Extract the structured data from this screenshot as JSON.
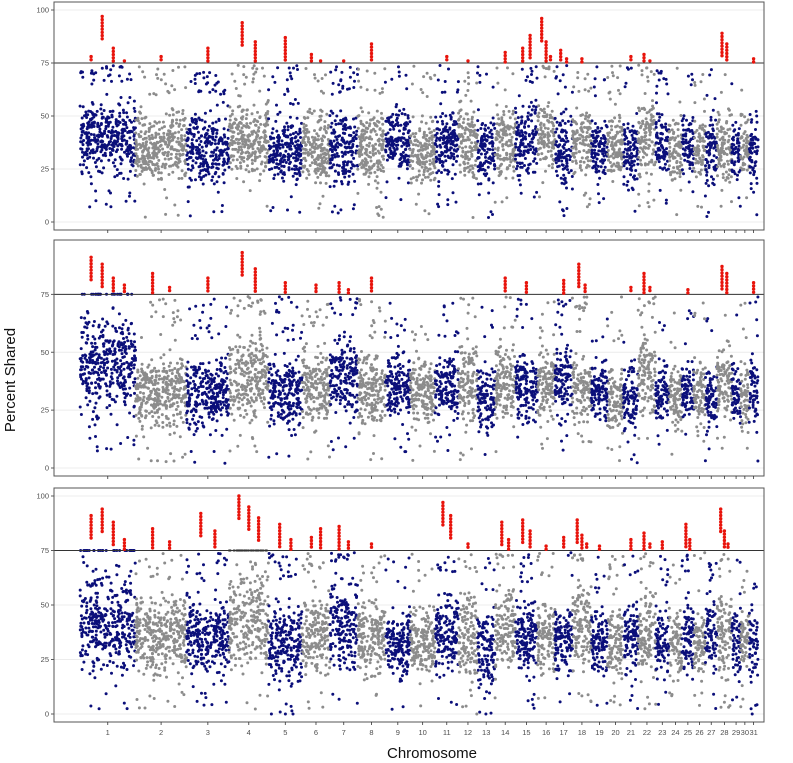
{
  "figure": {
    "xlabel": "Chromosome",
    "ylabel": "Percent Shared"
  },
  "colors": {
    "chrom_odd": "#0b0f7a",
    "chrom_even": "#8c8c8c",
    "highlight": "#e8140c",
    "threshold_line": "#333333",
    "panel_border": "#555555",
    "grid": "#ececec"
  },
  "chart_data": [
    {
      "type": "scatter",
      "title": "",
      "ylim": [
        0,
        100
      ],
      "yticks": [
        0,
        25,
        50,
        75,
        100
      ],
      "threshold": 75,
      "grid": true,
      "chromosomes": [
        "1",
        "2",
        "3",
        "4",
        "5",
        "6",
        "7",
        "8",
        "9",
        "10",
        "11",
        "12",
        "13",
        "14",
        "15",
        "16",
        "17",
        "18",
        "19",
        "20",
        "21",
        "22",
        "23",
        "24",
        "25",
        "26",
        "27",
        "28",
        "29",
        "30",
        "31"
      ],
      "typical_range": [
        [
          15,
          65
        ],
        [
          10,
          60
        ],
        [
          10,
          60
        ],
        [
          15,
          65
        ],
        [
          10,
          55
        ],
        [
          10,
          60
        ],
        [
          10,
          60
        ],
        [
          10,
          60
        ],
        [
          15,
          60
        ],
        [
          10,
          55
        ],
        [
          15,
          60
        ],
        [
          10,
          65
        ],
        [
          10,
          55
        ],
        [
          15,
          60
        ],
        [
          15,
          65
        ],
        [
          15,
          65
        ],
        [
          10,
          60
        ],
        [
          15,
          60
        ],
        [
          15,
          55
        ],
        [
          15,
          55
        ],
        [
          10,
          55
        ],
        [
          15,
          65
        ],
        [
          15,
          60
        ],
        [
          10,
          55
        ],
        [
          15,
          60
        ],
        [
          15,
          55
        ],
        [
          10,
          55
        ],
        [
          10,
          60
        ],
        [
          15,
          55
        ],
        [
          15,
          55
        ],
        [
          10,
          55
        ]
      ],
      "peaks_above_threshold": [
        {
          "chromosome": "1",
          "values": [
            78,
            97,
            82,
            76
          ]
        },
        {
          "chromosome": "2",
          "values": [
            78
          ]
        },
        {
          "chromosome": "3",
          "values": [
            82
          ]
        },
        {
          "chromosome": "4",
          "values": [
            94,
            85
          ]
        },
        {
          "chromosome": "5",
          "values": [
            87
          ]
        },
        {
          "chromosome": "6",
          "values": [
            79,
            76
          ]
        },
        {
          "chromosome": "7",
          "values": [
            76
          ]
        },
        {
          "chromosome": "8",
          "values": [
            84
          ]
        },
        {
          "chromosome": "11",
          "values": [
            78
          ]
        },
        {
          "chromosome": "12",
          "values": [
            76
          ]
        },
        {
          "chromosome": "14",
          "values": [
            80
          ]
        },
        {
          "chromosome": "15",
          "values": [
            82,
            88
          ]
        },
        {
          "chromosome": "16",
          "values": [
            96,
            85,
            78
          ]
        },
        {
          "chromosome": "17",
          "values": [
            81,
            77
          ]
        },
        {
          "chromosome": "18",
          "values": [
            77
          ]
        },
        {
          "chromosome": "21",
          "values": [
            78
          ]
        },
        {
          "chromosome": "22",
          "values": [
            79,
            76
          ]
        },
        {
          "chromosome": "28",
          "values": [
            89,
            84
          ]
        },
        {
          "chromosome": "31",
          "values": [
            77
          ]
        }
      ]
    },
    {
      "type": "scatter",
      "title": "",
      "ylim": [
        0,
        95
      ],
      "yticks": [
        0,
        25,
        50,
        75
      ],
      "threshold": 75,
      "grid": true,
      "chromosomes": [
        "1",
        "2",
        "3",
        "4",
        "5",
        "6",
        "7",
        "8",
        "9",
        "10",
        "11",
        "12",
        "13",
        "14",
        "15",
        "16",
        "17",
        "18",
        "19",
        "20",
        "21",
        "22",
        "23",
        "24",
        "25",
        "26",
        "27",
        "28",
        "29",
        "30",
        "31"
      ],
      "typical_range": [
        [
          15,
          75
        ],
        [
          10,
          55
        ],
        [
          10,
          55
        ],
        [
          15,
          65
        ],
        [
          10,
          55
        ],
        [
          10,
          60
        ],
        [
          15,
          65
        ],
        [
          10,
          55
        ],
        [
          15,
          55
        ],
        [
          10,
          55
        ],
        [
          15,
          55
        ],
        [
          10,
          65
        ],
        [
          10,
          50
        ],
        [
          15,
          60
        ],
        [
          15,
          55
        ],
        [
          15,
          55
        ],
        [
          15,
          60
        ],
        [
          15,
          55
        ],
        [
          15,
          50
        ],
        [
          10,
          50
        ],
        [
          10,
          50
        ],
        [
          15,
          65
        ],
        [
          15,
          50
        ],
        [
          10,
          50
        ],
        [
          15,
          50
        ],
        [
          15,
          50
        ],
        [
          10,
          50
        ],
        [
          15,
          60
        ],
        [
          15,
          50
        ],
        [
          10,
          50
        ],
        [
          10,
          55
        ]
      ],
      "peaks_above_threshold": [
        {
          "chromosome": "1",
          "values": [
            91,
            88,
            82,
            79
          ]
        },
        {
          "chromosome": "2",
          "values": [
            84,
            78
          ]
        },
        {
          "chromosome": "3",
          "values": [
            82
          ]
        },
        {
          "chromosome": "4",
          "values": [
            93,
            86
          ]
        },
        {
          "chromosome": "5",
          "values": [
            80
          ]
        },
        {
          "chromosome": "6",
          "values": [
            79
          ]
        },
        {
          "chromosome": "7",
          "values": [
            80,
            77
          ]
        },
        {
          "chromosome": "8",
          "values": [
            82
          ]
        },
        {
          "chromosome": "14",
          "values": [
            82
          ]
        },
        {
          "chromosome": "15",
          "values": [
            80
          ]
        },
        {
          "chromosome": "17",
          "values": [
            81
          ]
        },
        {
          "chromosome": "18",
          "values": [
            88,
            79
          ]
        },
        {
          "chromosome": "21",
          "values": [
            78
          ]
        },
        {
          "chromosome": "22",
          "values": [
            84,
            78
          ]
        },
        {
          "chromosome": "25",
          "values": [
            77
          ]
        },
        {
          "chromosome": "28",
          "values": [
            87,
            84
          ]
        },
        {
          "chromosome": "31",
          "values": [
            80
          ]
        }
      ]
    },
    {
      "type": "scatter",
      "title": "",
      "ylim": [
        0,
        100
      ],
      "yticks": [
        0,
        25,
        50,
        75,
        100
      ],
      "threshold": 75,
      "grid": true,
      "chromosomes": [
        "1",
        "2",
        "3",
        "4",
        "5",
        "6",
        "7",
        "8",
        "9",
        "10",
        "11",
        "12",
        "13",
        "14",
        "15",
        "16",
        "17",
        "18",
        "19",
        "20",
        "21",
        "22",
        "23",
        "24",
        "25",
        "26",
        "27",
        "28",
        "29",
        "30",
        "31"
      ],
      "typical_range": [
        [
          10,
          75
        ],
        [
          10,
          60
        ],
        [
          10,
          60
        ],
        [
          10,
          75
        ],
        [
          5,
          60
        ],
        [
          10,
          65
        ],
        [
          10,
          70
        ],
        [
          10,
          60
        ],
        [
          10,
          55
        ],
        [
          10,
          55
        ],
        [
          10,
          65
        ],
        [
          5,
          65
        ],
        [
          5,
          55
        ],
        [
          10,
          65
        ],
        [
          10,
          60
        ],
        [
          10,
          60
        ],
        [
          10,
          60
        ],
        [
          10,
          70
        ],
        [
          10,
          55
        ],
        [
          10,
          55
        ],
        [
          10,
          60
        ],
        [
          10,
          65
        ],
        [
          10,
          55
        ],
        [
          10,
          55
        ],
        [
          10,
          60
        ],
        [
          10,
          55
        ],
        [
          10,
          60
        ],
        [
          10,
          65
        ],
        [
          10,
          55
        ],
        [
          10,
          55
        ],
        [
          5,
          55
        ]
      ],
      "peaks_above_threshold": [
        {
          "chromosome": "1",
          "values": [
            91,
            94,
            88,
            80
          ]
        },
        {
          "chromosome": "2",
          "values": [
            85,
            79
          ]
        },
        {
          "chromosome": "3",
          "values": [
            92,
            84
          ]
        },
        {
          "chromosome": "4",
          "values": [
            100,
            95,
            90
          ]
        },
        {
          "chromosome": "5",
          "values": [
            87,
            80
          ]
        },
        {
          "chromosome": "6",
          "values": [
            81,
            85
          ]
        },
        {
          "chromosome": "7",
          "values": [
            86,
            79
          ]
        },
        {
          "chromosome": "8",
          "values": [
            78
          ]
        },
        {
          "chromosome": "11",
          "values": [
            97,
            91
          ]
        },
        {
          "chromosome": "12",
          "values": [
            78
          ]
        },
        {
          "chromosome": "14",
          "values": [
            88,
            80
          ]
        },
        {
          "chromosome": "15",
          "values": [
            89,
            84
          ]
        },
        {
          "chromosome": "16",
          "values": [
            77
          ]
        },
        {
          "chromosome": "17",
          "values": [
            81
          ]
        },
        {
          "chromosome": "18",
          "values": [
            89,
            82,
            78
          ]
        },
        {
          "chromosome": "19",
          "values": [
            77
          ]
        },
        {
          "chromosome": "21",
          "values": [
            80
          ]
        },
        {
          "chromosome": "22",
          "values": [
            83,
            78
          ]
        },
        {
          "chromosome": "23",
          "values": [
            79
          ]
        },
        {
          "chromosome": "25",
          "values": [
            87,
            80
          ]
        },
        {
          "chromosome": "28",
          "values": [
            94,
            84,
            78
          ]
        },
        {
          "chromosome": "31",
          "values": [
            75
          ]
        }
      ]
    }
  ]
}
